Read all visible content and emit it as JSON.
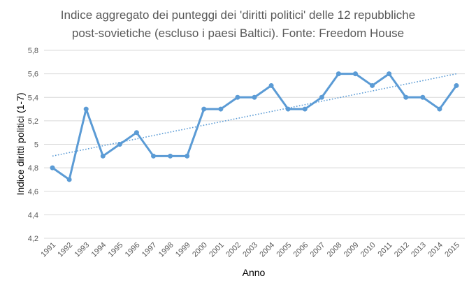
{
  "chart_data": {
    "type": "line",
    "title_lines": [
      "Indice aggregato dei punteggi dei 'diritti politici'  delle 12 repubbliche",
      "post-sovietiche (escluso i paesi Baltici).  Fonte: Freedom House"
    ],
    "xlabel": "Anno",
    "ylabel": "Indice diritti politici (1-7)",
    "ylim": [
      4.2,
      5.8
    ],
    "y_ticks": [
      "4,2",
      "4,4",
      "4,6",
      "4,8",
      "5",
      "5,2",
      "5,4",
      "5,6",
      "5,8"
    ],
    "y_tick_values": [
      4.2,
      4.4,
      4.6,
      4.8,
      5.0,
      5.2,
      5.4,
      5.6,
      5.8
    ],
    "grid": true,
    "categories": [
      "1991",
      "1992",
      "1993",
      "1994",
      "1995",
      "1996",
      "1997",
      "1998",
      "1999",
      "2000",
      "2001",
      "2002",
      "2003",
      "2004",
      "2005",
      "2006",
      "2007",
      "2008",
      "2009",
      "2010",
      "2011",
      "2012",
      "2013",
      "2014",
      "2015"
    ],
    "series": [
      {
        "values": [
          4.8,
          4.7,
          5.3,
          4.9,
          5.0,
          5.1,
          4.9,
          4.9,
          4.9,
          5.3,
          5.3,
          5.4,
          5.4,
          5.5,
          5.3,
          5.3,
          5.4,
          5.6,
          5.6,
          5.5,
          5.6,
          5.4,
          5.4,
          5.3,
          5.5
        ],
        "color": "#5B9BD5"
      }
    ],
    "trendline": {
      "style": "dotted",
      "start": 4.9,
      "end": 5.6,
      "color": "#5B9BD5"
    }
  }
}
